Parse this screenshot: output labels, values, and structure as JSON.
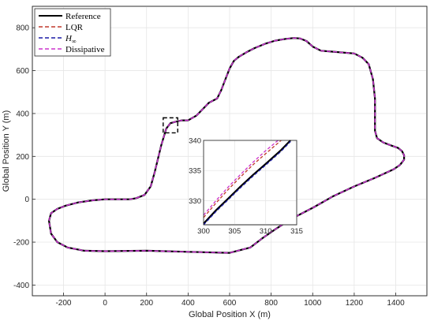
{
  "chart_data": {
    "type": "line",
    "xlabel": "Global Position X (m)",
    "ylabel": "Global Position Y (m)",
    "xlim": [
      -350,
      1550
    ],
    "ylim": [
      -450,
      900
    ],
    "xticks": [
      -200,
      0,
      200,
      400,
      600,
      800,
      1000,
      1200,
      1400
    ],
    "yticks": [
      -400,
      -200,
      0,
      200,
      400,
      600,
      800
    ],
    "grid": true,
    "legend_position": "top-left",
    "zoom_box": {
      "x": [
        280,
        350
      ],
      "y": [
        310,
        380
      ]
    },
    "inset": {
      "xlim": [
        300,
        315
      ],
      "ylim": [
        326,
        340
      ],
      "xticks": [
        300,
        305,
        310,
        315
      ],
      "yticks": [
        330,
        335,
        340
      ],
      "series": [
        {
          "name": "Reference",
          "color": "#000000",
          "x": [
            300,
            302,
            304,
            306,
            308,
            310,
            312.5,
            314
          ],
          "y": [
            326.2,
            328.4,
            330.4,
            332.4,
            334.3,
            336.1,
            338.4,
            340
          ]
        },
        {
          "name": "LQR",
          "color": "#c0392b",
          "x": [
            300,
            302,
            304,
            306,
            308,
            310,
            312.5
          ],
          "y": [
            327.2,
            329.6,
            331.9,
            334.0,
            336.0,
            337.8,
            340
          ]
        },
        {
          "name": "$H_\\infty$",
          "color": "#1a1aa6",
          "x": [
            300,
            302,
            304,
            306,
            308,
            310,
            312.5,
            314
          ],
          "y": [
            326.0,
            328.2,
            330.2,
            332.2,
            334.1,
            335.9,
            338.2,
            339.8
          ]
        },
        {
          "name": "Dissipative",
          "color": "#cc33cc",
          "x": [
            300,
            302,
            304,
            306,
            308,
            310,
            312
          ],
          "y": [
            327.6,
            330.0,
            332.3,
            334.4,
            336.4,
            338.3,
            340
          ]
        }
      ]
    },
    "series": [
      {
        "name": "Reference",
        "color": "#000000",
        "style": "solid",
        "legend_label": "Reference"
      },
      {
        "name": "LQR",
        "color": "#c0392b",
        "style": "dashed",
        "legend_label": "LQR"
      },
      {
        "name": "H∞",
        "color": "#1a1aa6",
        "style": "dashed",
        "legend_label": "H"
      },
      {
        "name": "Dissipative",
        "color": "#cc33cc",
        "style": "dashed",
        "legend_label": "Dissipative"
      }
    ],
    "track": {
      "x": [
        150,
        190,
        220,
        240,
        270,
        295,
        315,
        340,
        370,
        400,
        440,
        470,
        500,
        540,
        560,
        580,
        600,
        620,
        645,
        680,
        720,
        770,
        820,
        870,
        910,
        940,
        970,
        1000,
        1040,
        1100,
        1200,
        1240,
        1270,
        1290,
        1300,
        1300,
        1300,
        1310,
        1340,
        1380,
        1410,
        1430,
        1440,
        1440,
        1420,
        1390,
        1300,
        1200,
        1100,
        1000,
        900,
        820,
        760,
        700,
        600,
        400,
        200,
        0,
        -100,
        -180,
        -230,
        -260,
        -270,
        -260,
        -230,
        -190,
        -130,
        -60,
        0,
        60,
        120,
        150
      ],
      "y": [
        5,
        20,
        60,
        130,
        250,
        330,
        355,
        362,
        368,
        368,
        390,
        420,
        450,
        470,
        510,
        560,
        610,
        645,
        665,
        685,
        705,
        725,
        740,
        748,
        752,
        750,
        738,
        712,
        693,
        688,
        680,
        660,
        630,
        560,
        470,
        380,
        320,
        285,
        265,
        250,
        240,
        225,
        205,
        185,
        160,
        140,
        100,
        60,
        15,
        -40,
        -90,
        -140,
        -180,
        -225,
        -250,
        -245,
        -240,
        -242,
        -240,
        -225,
        -200,
        -160,
        -100,
        -65,
        -45,
        -30,
        -15,
        -5,
        0,
        0,
        0,
        5
      ]
    }
  }
}
